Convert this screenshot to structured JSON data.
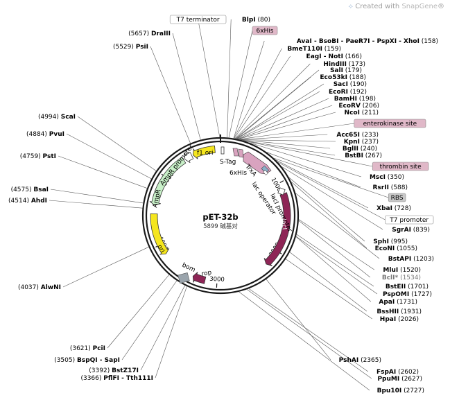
{
  "credit": {
    "prefix": "Created with",
    "brand": "SnapGene",
    "mark": "®"
  },
  "plasmid": {
    "name": "pET-32b",
    "size": "5899",
    "size_unit": "碱基对",
    "total_bp": 5899
  },
  "ticks": [
    {
      "label": "1000",
      "bp": 1000
    },
    {
      "label": "2000",
      "bp": 2000
    },
    {
      "label": "3000",
      "bp": 3000
    },
    {
      "label": "4000",
      "bp": 4000
    },
    {
      "label": "5000",
      "bp": 5000
    }
  ],
  "features": [
    {
      "name": "lacI",
      "start": 1160,
      "end": 2240,
      "strand": 1,
      "color": "#8e2556",
      "text_color": "#ffffff"
    },
    {
      "name": "rop",
      "start": 3170,
      "end": 3350,
      "strand": 1,
      "color": "#8e2556"
    },
    {
      "name": "ori",
      "start": 3850,
      "end": 4450,
      "strand": -1,
      "color": "#f5e61e"
    },
    {
      "name": "AmpR",
      "start": 4570,
      "end": 5350,
      "strand": -1,
      "color": "#c8f0c8"
    },
    {
      "name": "AmpR promoter",
      "start": 5370,
      "end": 5480,
      "strand": -1,
      "color": "#ffffff"
    },
    {
      "name": "f1 ori",
      "start": 5500,
      "end": 5820,
      "strand": -1,
      "color": "#f5e61e"
    }
  ],
  "inner_labels": {
    "s_tag": "S-Tag",
    "his": "6xHis",
    "trxa": "TrxA",
    "lac_operator": "lac operator",
    "laci_promoter": "lacI promoter",
    "laci": "lacI",
    "ampr_promoter": "AmpR promoter",
    "ampr": "AmpR",
    "f1ori": "f1 ori",
    "ori": "ori",
    "bom": "bom",
    "rop": "rop"
  },
  "right_labels": [
    {
      "enzyme": "BlpI",
      "pos": "(80)",
      "bp": 80
    },
    {
      "enzyme": "6xHis",
      "box": "pink",
      "bp": 100
    },
    {
      "enzyme": "AvaI - BsoBI - PaeR7I - PspXI - XhoI",
      "pos": "(158)",
      "bp": 158
    },
    {
      "enzyme": "BmeT110I",
      "pos": "(159)",
      "bp": 159
    },
    {
      "enzyme": "EagI - NotI",
      "pos": "(166)",
      "bp": 166
    },
    {
      "enzyme": "HindIII",
      "pos": "(173)",
      "bp": 173
    },
    {
      "enzyme": "SalI",
      "pos": "(179)",
      "bp": 179
    },
    {
      "enzyme": "Eco53kI",
      "pos": "(188)",
      "bp": 188
    },
    {
      "enzyme": "SacI",
      "pos": "(190)",
      "bp": 190
    },
    {
      "enzyme": "EcoRI",
      "pos": "(192)",
      "bp": 192
    },
    {
      "enzyme": "BamHI",
      "pos": "(198)",
      "bp": 198
    },
    {
      "enzyme": "EcoRV",
      "pos": "(206)",
      "bp": 206
    },
    {
      "enzyme": "NcoI",
      "pos": "(211)",
      "bp": 211
    },
    {
      "enzyme": "enterokinase site",
      "box": "pink",
      "bp": 220
    },
    {
      "enzyme": "Acc65I",
      "pos": "(233)",
      "bp": 233
    },
    {
      "enzyme": "KpnI",
      "pos": "(237)",
      "bp": 237
    },
    {
      "enzyme": "BglII",
      "pos": "(240)",
      "bp": 240
    },
    {
      "enzyme": "BstBI",
      "pos": "(267)",
      "bp": 267
    },
    {
      "enzyme": "thrombin site",
      "box": "pink",
      "bp": 290
    },
    {
      "enzyme": "MscI",
      "pos": "(350)",
      "bp": 350
    },
    {
      "enzyme": "RsrII",
      "pos": "(588)",
      "bp": 588
    },
    {
      "enzyme": "RBS",
      "box": "gray",
      "bp": 700
    },
    {
      "enzyme": "XbaI",
      "pos": "(728)",
      "bp": 728
    },
    {
      "enzyme": "T7 promoter",
      "box": "white",
      "bp": 770
    },
    {
      "enzyme": "SgrAI",
      "pos": "(839)",
      "bp": 839
    },
    {
      "enzyme": "SphI",
      "pos": "(995)",
      "bp": 995
    },
    {
      "enzyme": "EcoNI",
      "pos": "(1055)",
      "bp": 1055
    },
    {
      "enzyme": "BstAPI",
      "pos": "(1203)",
      "bp": 1203
    },
    {
      "enzyme": "MluI",
      "pos": "(1520)",
      "bp": 1520
    },
    {
      "enzyme": "BclI*",
      "pos": "(1534)",
      "bp": 1534,
      "gray": true
    },
    {
      "enzyme": "BstEII",
      "pos": "(1701)",
      "bp": 1701
    },
    {
      "enzyme": "PspOMI",
      "pos": "(1727)",
      "bp": 1727
    },
    {
      "enzyme": "ApaI",
      "pos": "(1731)",
      "bp": 1731
    },
    {
      "enzyme": "BssHII",
      "pos": "(1931)",
      "bp": 1931
    },
    {
      "enzyme": "HpaI",
      "pos": "(2026)",
      "bp": 2026
    },
    {
      "enzyme": "PshAI",
      "pos": "(2365)",
      "bp": 2365
    },
    {
      "enzyme": "FspAI",
      "pos": "(2602)",
      "bp": 2602
    },
    {
      "enzyme": "PpuMI",
      "pos": "(2627)",
      "bp": 2627
    },
    {
      "enzyme": "Bpu10I",
      "pos": "(2727)",
      "bp": 2727
    }
  ],
  "left_labels": [
    {
      "enzyme": "T7 terminator",
      "box": "white",
      "bp": 5890
    },
    {
      "enzyme": "DraIII",
      "pos": "(5657)",
      "bp": 5657
    },
    {
      "enzyme": "PsiI",
      "pos": "(5529)",
      "bp": 5529
    },
    {
      "enzyme": "ScaI",
      "pos": "(4994)",
      "bp": 4994
    },
    {
      "enzyme": "PvuI",
      "pos": "(4884)",
      "bp": 4884
    },
    {
      "enzyme": "PstI",
      "pos": "(4759)",
      "bp": 4759
    },
    {
      "enzyme": "BsaI",
      "pos": "(4575)",
      "bp": 4575
    },
    {
      "enzyme": "AhdI",
      "pos": "(4514)",
      "bp": 4514
    },
    {
      "enzyme": "AlwNI",
      "pos": "(4037)",
      "bp": 4037
    },
    {
      "enzyme": "PciI",
      "pos": "(3621)",
      "bp": 3621
    },
    {
      "enzyme": "BspQI - SapI",
      "pos": "(3505)",
      "bp": 3505
    },
    {
      "enzyme": "BstZ17I",
      "pos": "(3392)",
      "bp": 3392
    },
    {
      "enzyme": "PflFI - Tth111I",
      "pos": "(3366)",
      "bp": 3366
    }
  ],
  "colors": {
    "pink_box": "#e0b8c8",
    "gray_box": "#c8c8c8",
    "lacI": "#8e2556",
    "ori": "#f5e61e",
    "ampr": "#c8f0c8",
    "trxa": "#d9a3bf",
    "line": "#555555"
  }
}
